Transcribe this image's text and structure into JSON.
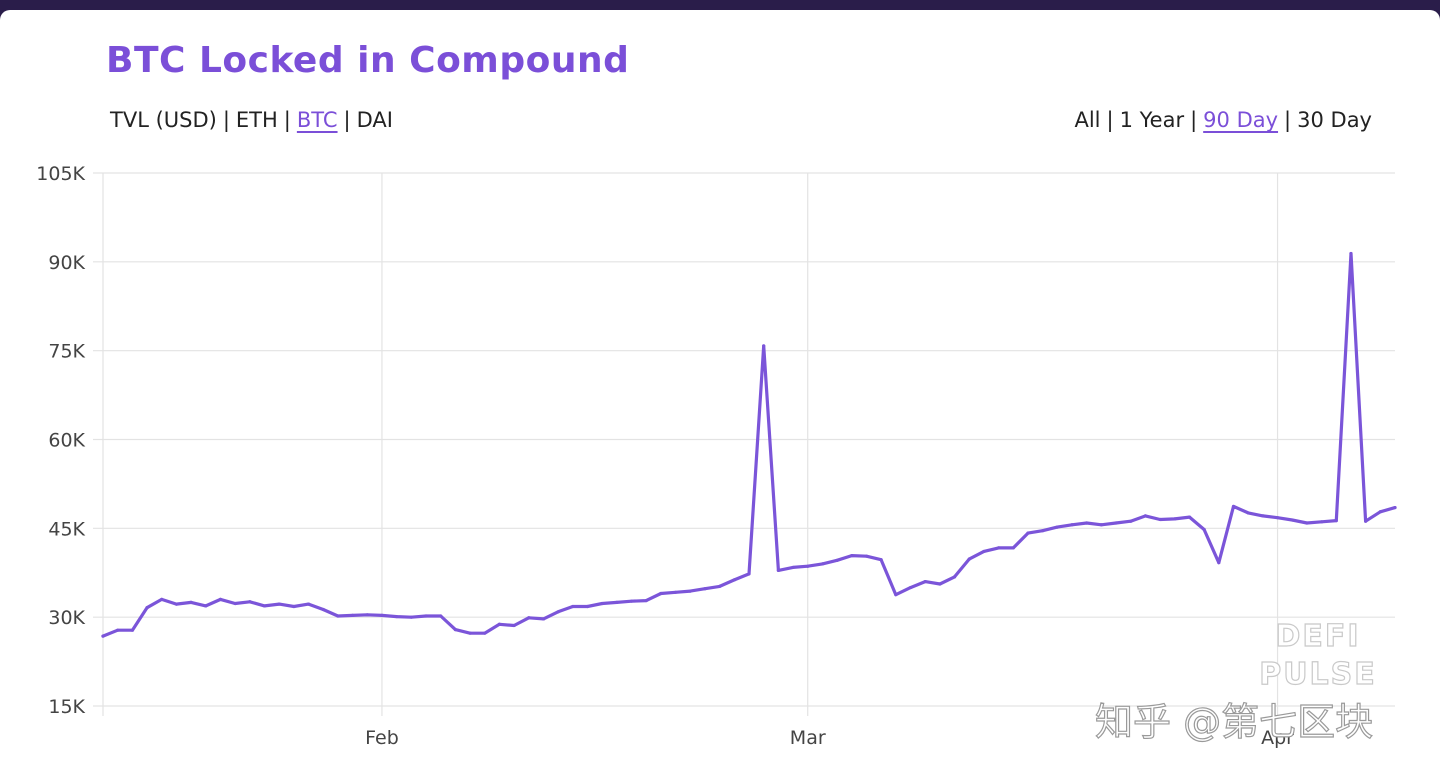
{
  "title": "BTC Locked in Compound",
  "metric_tabs": [
    {
      "label": "TVL (USD)",
      "active": false
    },
    {
      "label": "ETH",
      "active": false
    },
    {
      "label": "BTC",
      "active": true
    },
    {
      "label": "DAI",
      "active": false
    }
  ],
  "range_tabs": [
    {
      "label": "All",
      "active": false
    },
    {
      "label": "1 Year",
      "active": false
    },
    {
      "label": "90 Day",
      "active": true
    },
    {
      "label": "30 Day",
      "active": false
    }
  ],
  "separator": "|",
  "colors": {
    "accent": "#7b4fd8",
    "line": "#7b55d9",
    "grid": "#e3e3e3",
    "text": "#222222"
  },
  "watermark": {
    "line1": "DEFI",
    "line2": "PULSE",
    "zhihu": "知乎 @第七区块"
  },
  "chart_data": {
    "type": "line",
    "title": "BTC Locked in Compound",
    "xlabel": "",
    "ylabel": "",
    "ylim": [
      15000,
      105000
    ],
    "yticks": [
      15000,
      30000,
      45000,
      60000,
      75000,
      90000,
      105000
    ],
    "ytick_labels": [
      "15K",
      "30K",
      "45K",
      "60K",
      "75K",
      "90K",
      "105K"
    ],
    "x_tick_labels": [
      {
        "label": "Feb",
        "index": 19
      },
      {
        "label": "Mar",
        "index": 48
      },
      {
        "label": "Apr",
        "index": 80
      }
    ],
    "grid": true,
    "series": [
      {
        "values": [
          26800,
          27800,
          27800,
          31600,
          33000,
          32200,
          32500,
          31900,
          33000,
          32300,
          32600,
          31900,
          32200,
          31800,
          32200,
          31300,
          30200,
          30300,
          30400,
          30300,
          30100,
          30000,
          30200,
          30200,
          27900,
          27300,
          27300,
          28800,
          28600,
          29900,
          29700,
          30900,
          31800,
          31800,
          32300,
          32500,
          32700,
          32800,
          34000,
          34200,
          34400,
          34800,
          35200,
          36300,
          37300,
          75800,
          37900,
          38400,
          38600,
          39000,
          39600,
          40400,
          40300,
          39700,
          33800,
          35000,
          36000,
          35600,
          36800,
          39800,
          41100,
          41700,
          41700,
          44200,
          44600,
          45200,
          45600,
          45900,
          45600,
          45900,
          46200,
          47100,
          46500,
          46600,
          46900,
          44800,
          39200,
          48700,
          47600,
          47100,
          46800,
          46400,
          45900,
          46100,
          46300,
          91400,
          46200,
          47800,
          48500
        ]
      }
    ]
  }
}
